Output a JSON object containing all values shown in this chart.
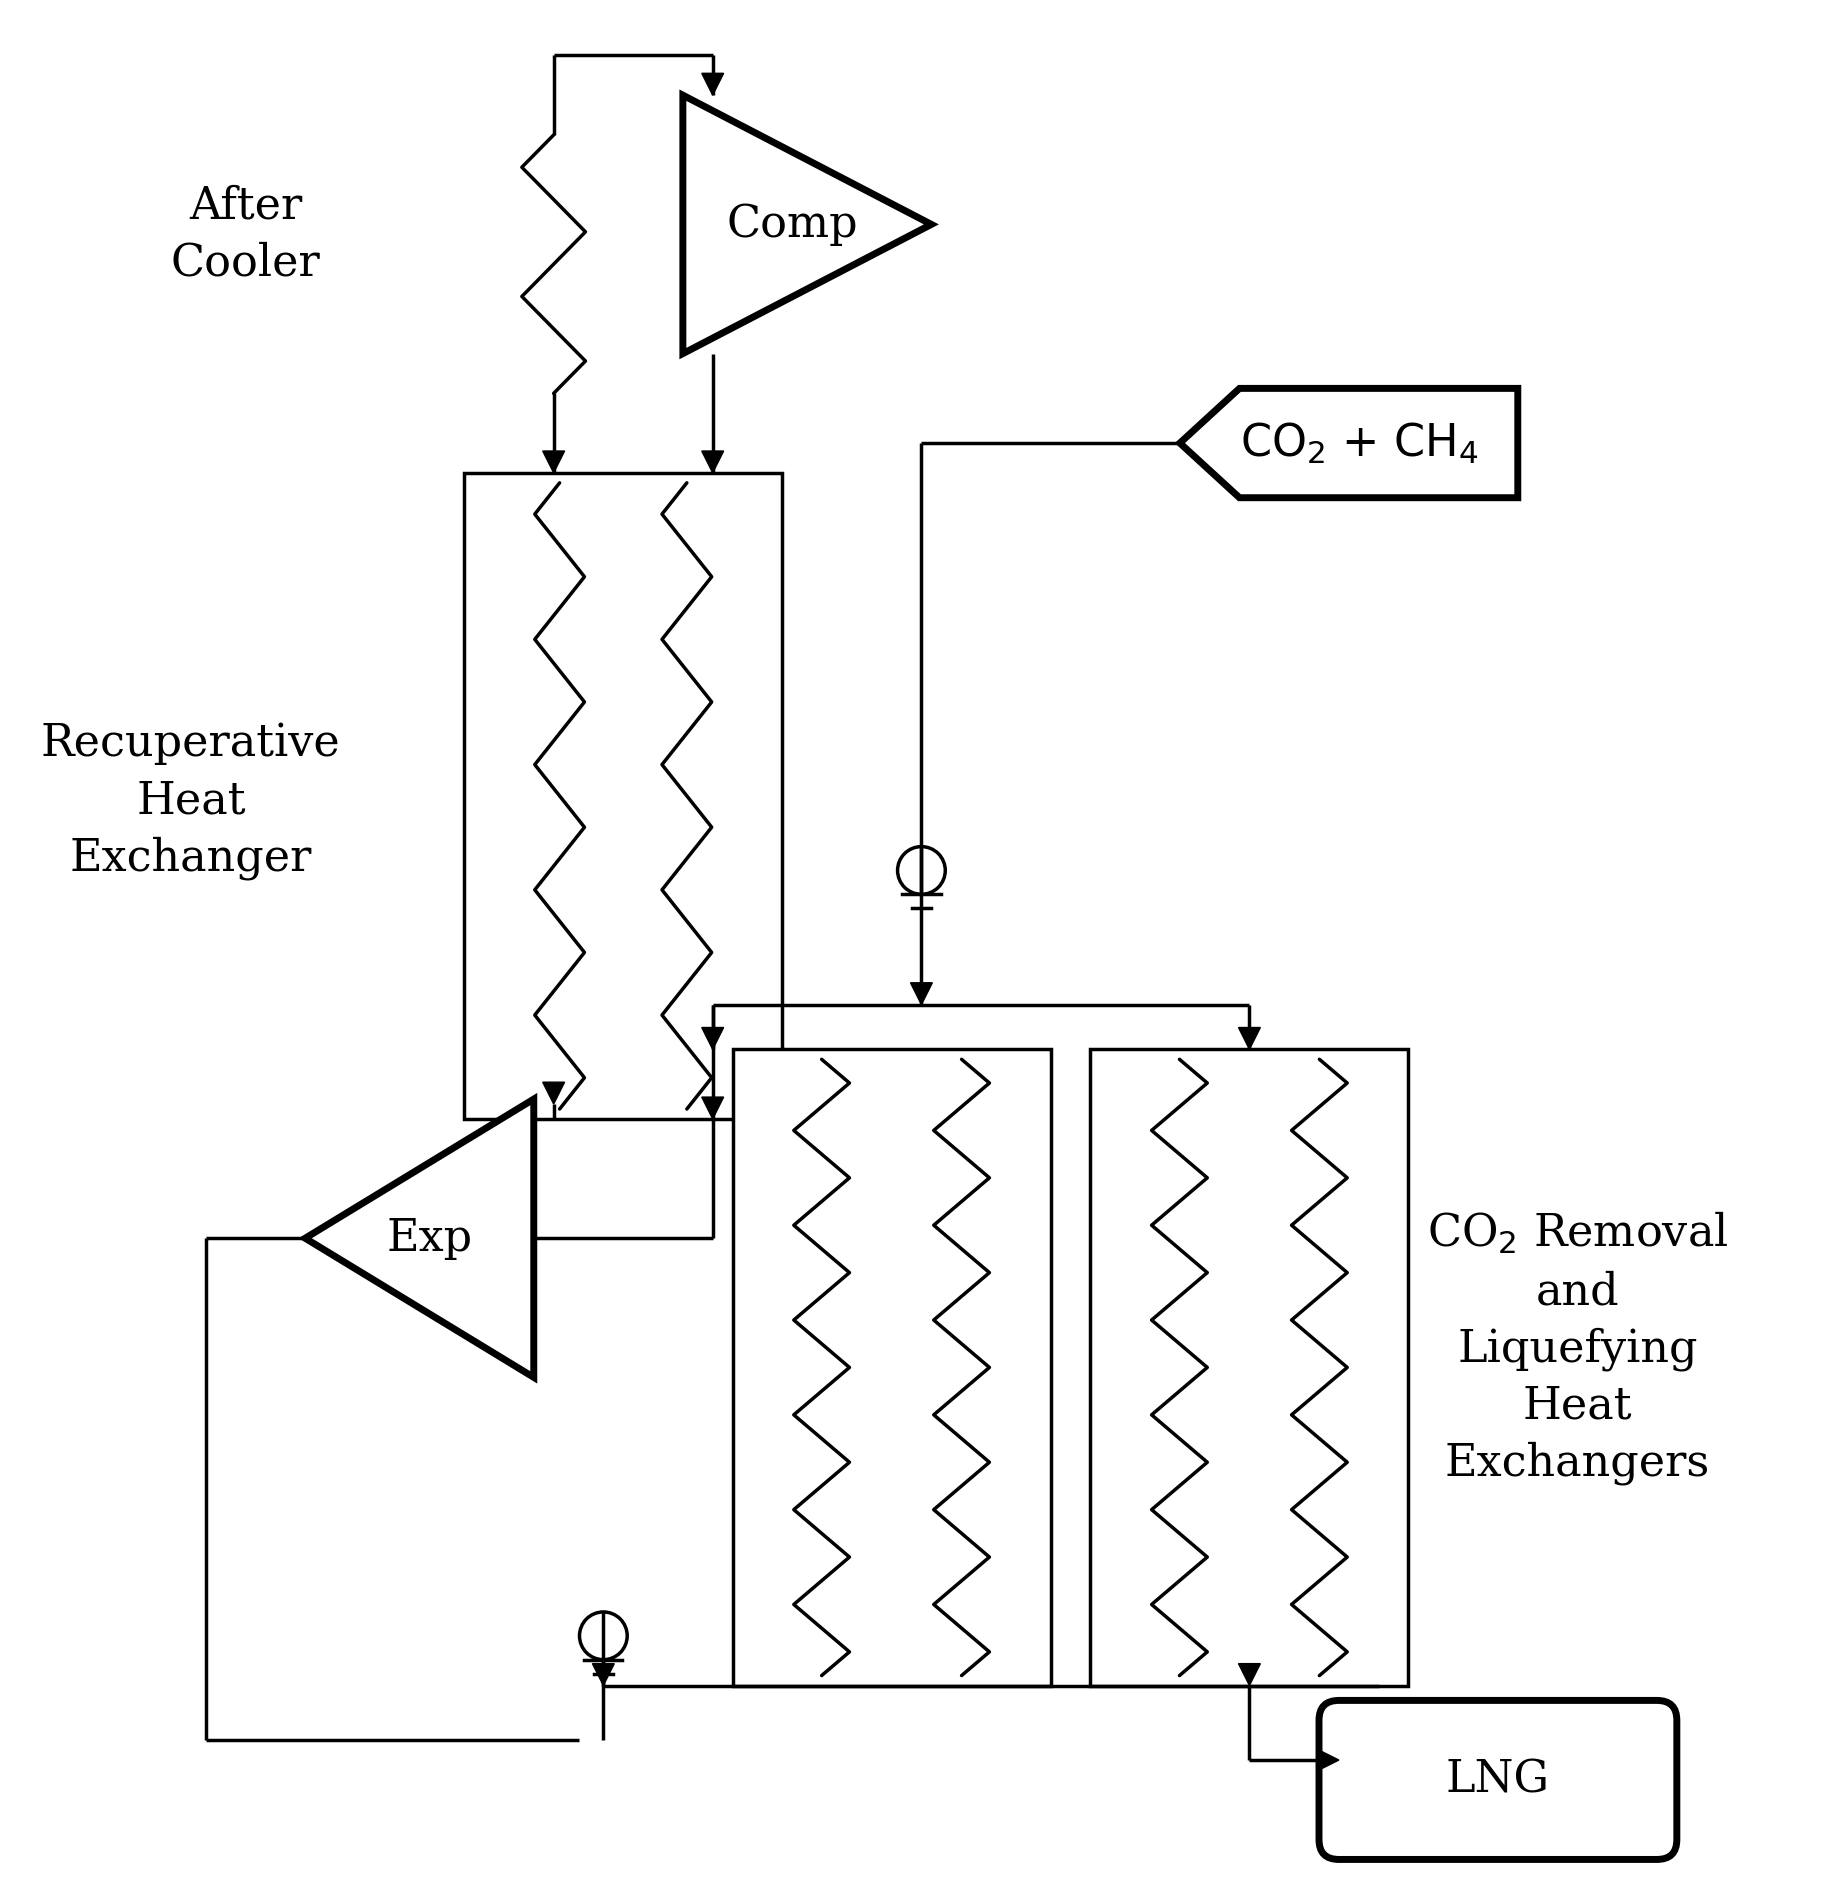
{
  "bg_color": "#ffffff",
  "lc": "#000000",
  "lw": 2.5,
  "tlw": 5.0,
  "comp_label": "Comp",
  "exp_label": "Exp",
  "after_cooler_label": "After\nCooler",
  "recuperative_label": "Recuperative\nHeat\nExchanger",
  "co2_ch4_label": "CO₂ + CH₄",
  "co2_removal_label": "CO₂ Removal\nand\nLiquefying\nHeat\nExchangers",
  "lng_label": "LNG",
  "fs_large": 32,
  "fs_medium": 26
}
